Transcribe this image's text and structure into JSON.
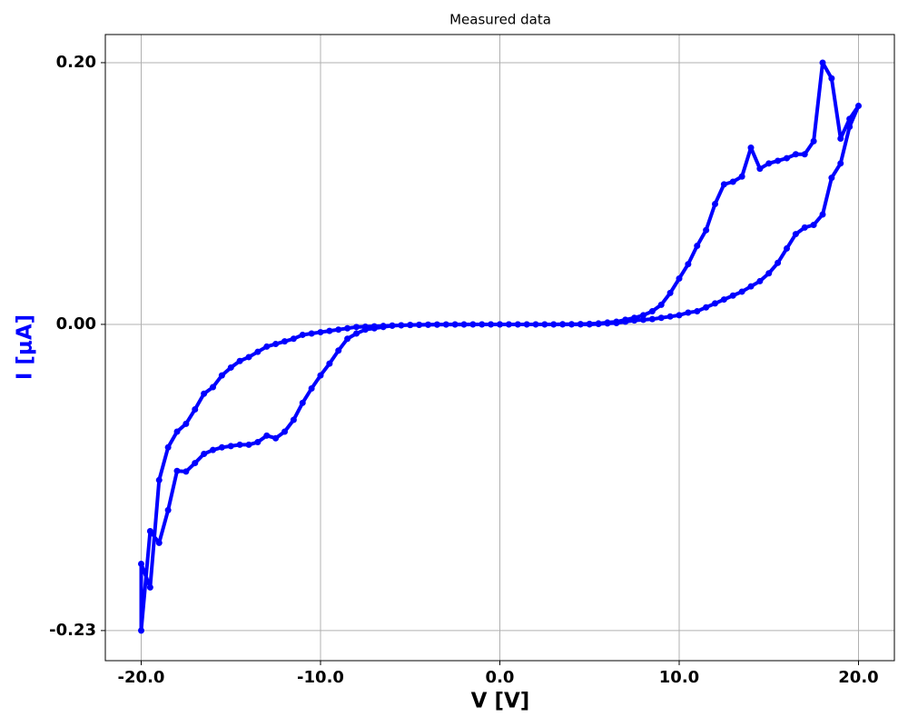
{
  "chart_data": {
    "type": "line",
    "title": "Measured data",
    "xlabel": "V [V]",
    "ylabel": "I [μA]",
    "ylabel_color": "#0000ff",
    "color": "#0000ff",
    "grid": true,
    "markers": true,
    "xlim": [
      -22,
      22
    ],
    "ylim": [
      -0.257,
      0.2215
    ],
    "xticks": [
      {
        "value": -20,
        "label": "-20.0"
      },
      {
        "value": -10,
        "label": "-10.0"
      },
      {
        "value": 0,
        "label": "0.0"
      },
      {
        "value": 10,
        "label": "10.0"
      },
      {
        "value": 20,
        "label": "20.0"
      }
    ],
    "yticks": [
      {
        "value": -0.234,
        "label": "-0.23"
      },
      {
        "value": 0,
        "label": "0.00"
      },
      {
        "value": 0.2,
        "label": "0.20"
      }
    ],
    "x": [
      0,
      0.5,
      1,
      1.5,
      2,
      2.5,
      3,
      3.5,
      4,
      4.5,
      5,
      5.5,
      6,
      6.5,
      7,
      7.5,
      8,
      8.5,
      9,
      9.5,
      10,
      10.5,
      11,
      11.5,
      12,
      12.5,
      13,
      13.5,
      14,
      14.5,
      15,
      15.5,
      16,
      16.5,
      17,
      17.5,
      18,
      18.5,
      19,
      19.5,
      20,
      19.5,
      19,
      18.5,
      18,
      17.5,
      17,
      16.5,
      16,
      15.5,
      15,
      14.5,
      14,
      13.5,
      13,
      12.5,
      12,
      11.5,
      11,
      10.5,
      10,
      9.5,
      9,
      8.5,
      8,
      7.5,
      7,
      6.5,
      6,
      5.5,
      5,
      4.5,
      4,
      3.5,
      3,
      2.5,
      2,
      1.5,
      1,
      0.5,
      0,
      -0.5,
      -1,
      -1.5,
      -2,
      -2.5,
      -3,
      -3.5,
      -4,
      -4.5,
      -5,
      -5.5,
      -6,
      -6.5,
      -7,
      -7.5,
      -8,
      -8.5,
      -9,
      -9.5,
      -10,
      -10.5,
      -11,
      -11.5,
      -12,
      -12.5,
      -13,
      -13.5,
      -14,
      -14.5,
      -15,
      -15.5,
      -16,
      -16.5,
      -17,
      -17.5,
      -18,
      -18.5,
      -19,
      -19.5,
      -20,
      -20,
      -19.5,
      -19,
      -18.5,
      -18,
      -17.5,
      -17,
      -16.5,
      -16,
      -15.5,
      -15,
      -14.5,
      -14,
      -13.5,
      -13,
      -12.5,
      -12,
      -11.5,
      -11,
      -10.5,
      -10,
      -9.5,
      -9,
      -8.5,
      -8,
      -7.5,
      -7,
      -6.5,
      -6,
      -5.5,
      -5,
      -4.5,
      -4,
      -3.5,
      -3,
      -2.5,
      -2,
      -1.5,
      -1,
      -0.5,
      0
    ],
    "values": [
      0,
      0,
      0,
      0,
      0,
      0,
      0,
      0,
      0,
      0,
      0,
      0.0003,
      0.0007,
      0.001,
      0.002,
      0.003,
      0.0035,
      0.004,
      0.005,
      0.006,
      0.007,
      0.009,
      0.01,
      0.013,
      0.016,
      0.019,
      0.022,
      0.025,
      0.029,
      0.033,
      0.039,
      0.047,
      0.058,
      0.069,
      0.074,
      0.076,
      0.084,
      0.112,
      0.123,
      0.151,
      0.167,
      0.157,
      0.142,
      0.188,
      0.2,
      0.14,
      0.13,
      0.13,
      0.127,
      0.125,
      0.123,
      0.119,
      0.135,
      0.113,
      0.109,
      0.107,
      0.092,
      0.072,
      0.06,
      0.046,
      0.035,
      0.024,
      0.015,
      0.01,
      0.007,
      0.005,
      0.0035,
      0.002,
      0.0014,
      0.0007,
      0.0004,
      0.0002,
      0.0001,
      0.0001,
      0,
      0,
      0,
      0,
      0,
      0,
      0,
      0,
      0,
      0,
      -0.0001,
      -0.0001,
      -0.0001,
      -0.0002,
      -0.0003,
      -0.0004,
      -0.0005,
      -0.0007,
      -0.0009,
      -0.0012,
      -0.0015,
      -0.0018,
      -0.002,
      -0.003,
      -0.004,
      -0.005,
      -0.006,
      -0.007,
      -0.008,
      -0.011,
      -0.013,
      -0.015,
      -0.017,
      -0.021,
      -0.025,
      -0.028,
      -0.033,
      -0.039,
      -0.048,
      -0.053,
      -0.065,
      -0.076,
      -0.082,
      -0.094,
      -0.119,
      -0.201,
      -0.183,
      -0.234,
      -0.158,
      -0.167,
      -0.142,
      -0.112,
      -0.1125,
      -0.106,
      -0.099,
      -0.096,
      -0.094,
      -0.093,
      -0.092,
      -0.092,
      -0.09,
      -0.085,
      -0.087,
      -0.082,
      -0.073,
      -0.06,
      -0.049,
      -0.039,
      -0.03,
      -0.02,
      -0.011,
      -0.007,
      -0.004,
      -0.003,
      -0.002,
      -0.001,
      -0.0007,
      -0.0005,
      -0.0003,
      -0.0002,
      -0.0001,
      -0.0001,
      0,
      0,
      0,
      0,
      0,
      0
    ]
  }
}
